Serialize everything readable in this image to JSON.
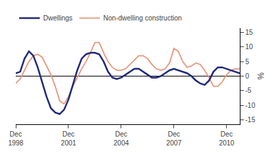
{
  "chart_data": {
    "type": "line",
    "categories": [
      "Dec\n1998",
      null,
      null,
      null,
      null,
      null,
      null,
      null,
      null,
      null,
      null,
      null,
      "Dec\n2001",
      null,
      null,
      null,
      null,
      null,
      null,
      null,
      null,
      null,
      null,
      null,
      "Dec\n2004",
      null,
      null,
      null,
      null,
      null,
      null,
      null,
      null,
      null,
      null,
      null,
      "Dec\n2007",
      null,
      null,
      null,
      null,
      null,
      null,
      null,
      null,
      null,
      null,
      null,
      "Dec\n2010",
      null,
      null,
      null
    ],
    "series": [
      {
        "name": "Dwellings",
        "color": "#1f2a7a",
        "values": [
          1.0,
          1.5,
          6.0,
          8.5,
          7.0,
          3.0,
          -2.0,
          -7.0,
          -11.0,
          -12.5,
          -13.0,
          -11.5,
          -8.0,
          -3.0,
          2.0,
          6.0,
          7.5,
          8.0,
          8.0,
          7.5,
          5.0,
          1.5,
          -0.5,
          -1.0,
          -0.5,
          0.5,
          1.5,
          2.5,
          2.5,
          1.5,
          0.5,
          -0.5,
          -0.5,
          0.0,
          1.0,
          2.0,
          2.5,
          2.0,
          1.5,
          1.0,
          0.0,
          -1.5,
          -2.5,
          -3.0,
          -1.5,
          1.5,
          3.0,
          3.0,
          2.5,
          2.0,
          1.5,
          1.0
        ]
      },
      {
        "name": "Non-dwelling construction",
        "color": "#e8967a",
        "values": [
          -2.5,
          -1.0,
          2.0,
          5.0,
          7.0,
          7.5,
          6.5,
          3.5,
          0.5,
          -3.5,
          -8.5,
          -9.5,
          -7.0,
          -3.5,
          -0.5,
          2.5,
          5.0,
          8.0,
          11.5,
          11.5,
          8.0,
          5.0,
          3.0,
          2.0,
          2.0,
          2.5,
          4.0,
          5.5,
          7.0,
          7.0,
          6.0,
          4.0,
          2.5,
          2.0,
          2.5,
          4.5,
          9.5,
          8.5,
          5.0,
          3.0,
          3.5,
          4.5,
          4.0,
          2.0,
          -0.5,
          -3.5,
          -3.5,
          -2.0,
          0.5,
          2.0,
          2.5,
          2.5
        ]
      }
    ],
    "ylabel": "%",
    "ylim": [
      -16.5,
      16.5
    ],
    "yticks": [
      -15,
      -10,
      -5,
      0,
      5,
      10,
      15
    ],
    "grid": false,
    "legend": "upper left"
  }
}
